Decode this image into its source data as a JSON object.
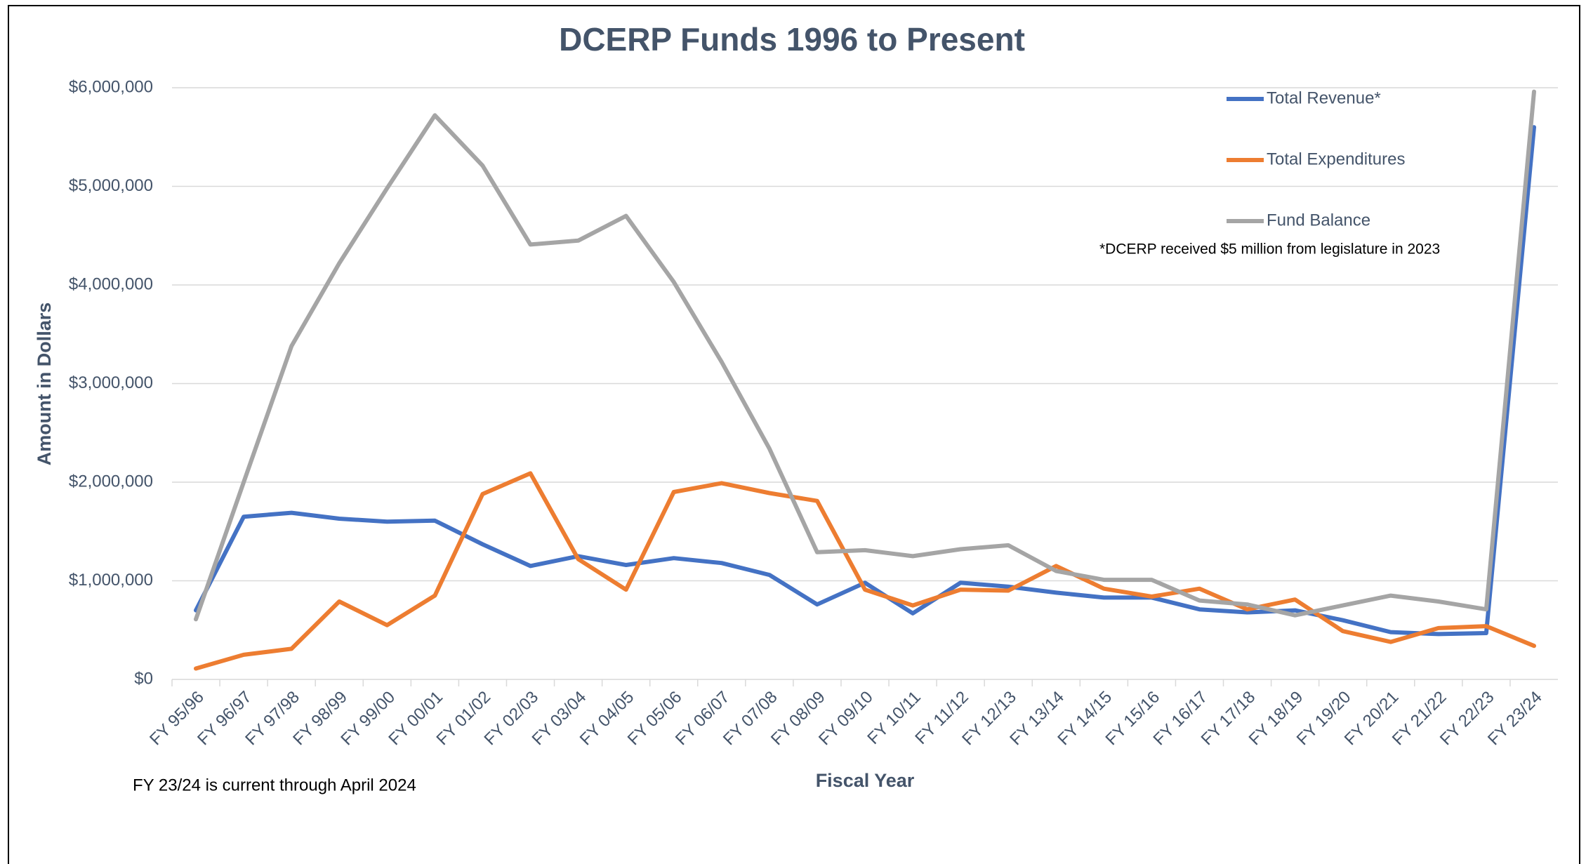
{
  "chart_data": {
    "type": "line",
    "title": "DCERP Funds 1996 to Present",
    "x_label": "Fiscal Year",
    "y_label": "Amount in Dollars",
    "annotations": [
      "*DCERP received $5 million from legislature in 2023",
      "FY 23/24 is current through April 2024"
    ],
    "categories": [
      "FY 95/96",
      "FY 96/97",
      "FY 97/98",
      "FY 98/99",
      "FY 99/00",
      "FY 00/01",
      "FY 01/02",
      "FY 02/03",
      "FY 03/04",
      "FY 04/05",
      "FY 05/06",
      "FY 06/07",
      "FY 07/08",
      "FY 08/09",
      "FY 09/10",
      "FY 10/11",
      "FY 11/12",
      "FY 12/13",
      "FY 13/14",
      "FY 14/15",
      "FY 15/16",
      "FY 16/17",
      "FY 17/18",
      "FY 18/19",
      "FY 19/20",
      "FY 20/21",
      "FY 21/22",
      "FY 22/23",
      "FY 23/24"
    ],
    "series": [
      {
        "name": "Total Revenue*",
        "color": "#4472c4",
        "values": [
          700000,
          1650000,
          1690000,
          1630000,
          1600000,
          1610000,
          1370000,
          1150000,
          1250000,
          1160000,
          1230000,
          1180000,
          1060000,
          760000,
          980000,
          670000,
          980000,
          940000,
          880000,
          830000,
          830000,
          710000,
          680000,
          700000,
          600000,
          480000,
          460000,
          470000,
          5600000
        ]
      },
      {
        "name": "Total Expenditures",
        "color": "#ed7d31",
        "values": [
          110000,
          250000,
          310000,
          790000,
          550000,
          850000,
          1880000,
          2090000,
          1220000,
          910000,
          1900000,
          1990000,
          1890000,
          1810000,
          910000,
          750000,
          910000,
          900000,
          1150000,
          920000,
          840000,
          920000,
          710000,
          810000,
          490000,
          380000,
          520000,
          540000,
          340000
        ]
      },
      {
        "name": "Fund Balance",
        "color": "#a5a5a5",
        "values": [
          610000,
          2000000,
          3380000,
          4220000,
          4980000,
          5720000,
          5210000,
          4410000,
          4450000,
          4700000,
          4030000,
          3220000,
          2340000,
          1290000,
          1310000,
          1250000,
          1320000,
          1360000,
          1100000,
          1010000,
          1010000,
          800000,
          760000,
          650000,
          750000,
          850000,
          790000,
          710000,
          5960000
        ]
      }
    ],
    "ylim": [
      0,
      6000000
    ],
    "yticks": [
      {
        "value": 0,
        "label": "$0"
      },
      {
        "value": 1000000,
        "label": "$1,000,000"
      },
      {
        "value": 2000000,
        "label": "$2,000,000"
      },
      {
        "value": 3000000,
        "label": "$3,000,000"
      },
      {
        "value": 4000000,
        "label": "$4,000,000"
      },
      {
        "value": 5000000,
        "label": "$5,000,000"
      },
      {
        "value": 6000000,
        "label": "$6,000,000"
      }
    ],
    "grid": true,
    "legend": "upper right"
  }
}
